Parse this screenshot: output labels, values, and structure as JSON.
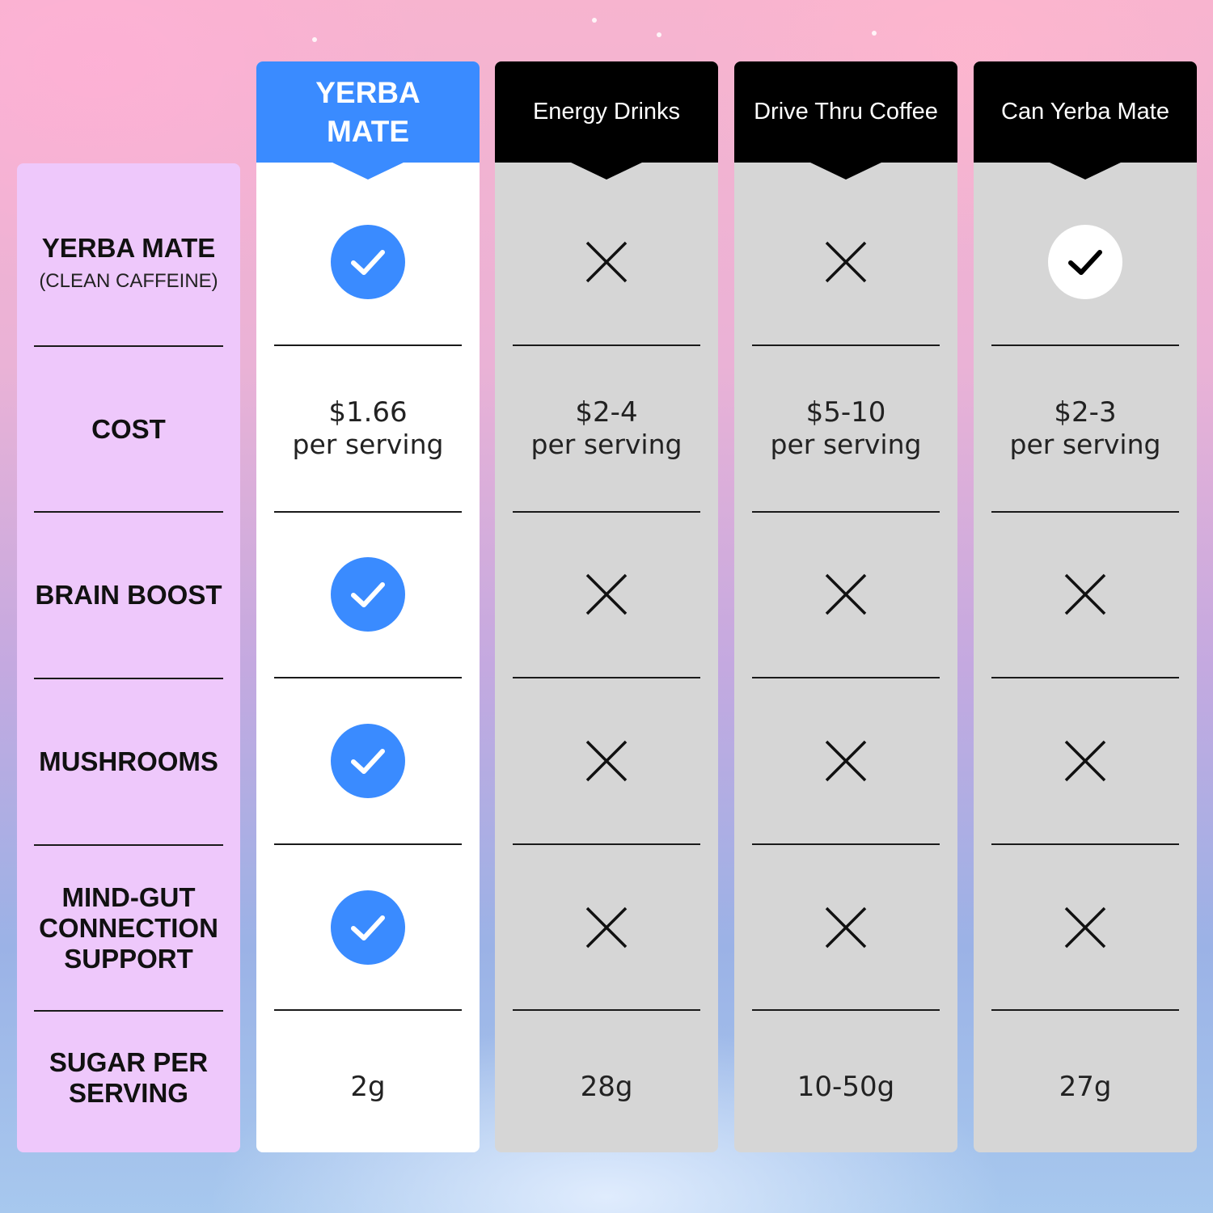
{
  "columns": [
    {
      "name": "YERBA MATE",
      "highlight": true
    },
    {
      "name": "Energy Drinks"
    },
    {
      "name": "Drive Thru Coffee"
    },
    {
      "name": "Can Yerba Mate"
    }
  ],
  "rows": [
    {
      "label": "YERBA MATE",
      "sublabel": "(CLEAN CAFFEINE)",
      "values": [
        "check",
        "cross",
        "cross",
        "check"
      ]
    },
    {
      "label": "COST",
      "values": [
        {
          "price": "$1.66",
          "unit": "per serving"
        },
        {
          "price": "$2-4",
          "unit": "per serving"
        },
        {
          "price": "$5-10",
          "unit": "per serving"
        },
        {
          "price": "$2-3",
          "unit": "per serving"
        }
      ]
    },
    {
      "label": "BRAIN BOOST",
      "values": [
        "check",
        "cross",
        "cross",
        "cross"
      ]
    },
    {
      "label": "MUSHROOMS",
      "values": [
        "check",
        "cross",
        "cross",
        "cross"
      ]
    },
    {
      "label": "MIND-GUT CONNECTION SUPPORT",
      "values": [
        "check",
        "cross",
        "cross",
        "cross"
      ]
    },
    {
      "label": "SUGAR PER SERVING",
      "values": [
        "2g",
        "28g",
        "10-50g",
        "27g"
      ]
    }
  ],
  "colors": {
    "accent": "#3a8bff",
    "label_column": "#eec8fb",
    "competitor_column": "#d6d6d6",
    "header_dark": "#000000"
  },
  "icons": {
    "check": "check-circle-icon",
    "cross": "x-icon"
  }
}
